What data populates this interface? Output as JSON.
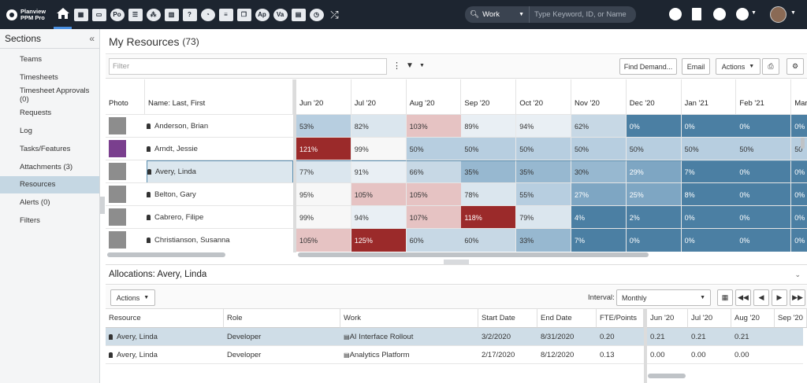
{
  "app": {
    "logo_line1": "Planview",
    "logo_line2": "PPM Pro"
  },
  "topnav": {
    "icons": [
      "home-icon",
      "dashboard-icon",
      "inbox-icon",
      "portfolio-icon",
      "list-icon",
      "groups-icon",
      "map-icon",
      "help-doc-icon",
      "pie-chart-icon",
      "document-icon",
      "copy-icon",
      "ap-icon",
      "va-icon",
      "building-icon",
      "clock-icon",
      "shuffle-icon"
    ],
    "po_label": "Po",
    "ap_label": "Ap",
    "va_label": "Va"
  },
  "search": {
    "scope": "Work",
    "placeholder": "Type Keyword, ID, or Name"
  },
  "sidebar": {
    "title": "Sections",
    "items": [
      {
        "label": "Teams"
      },
      {
        "label": "Timesheets"
      },
      {
        "label": "Timesheet Approvals (0)"
      },
      {
        "label": "Requests"
      },
      {
        "label": "Log"
      },
      {
        "label": "Tasks/Features"
      },
      {
        "label": "Attachments (3)"
      },
      {
        "label": "Resources"
      },
      {
        "label": "Alerts (0)"
      },
      {
        "label": "Filters"
      }
    ]
  },
  "main": {
    "title": "My Resources",
    "count": "(73)"
  },
  "toolbar": {
    "filter_placeholder": "Filter",
    "find_demand": "Find Demand...",
    "email": "Email",
    "actions": "Actions"
  },
  "grid": {
    "photo_header": "Photo",
    "name_header": "Name: Last, First",
    "months": [
      "Jun '20",
      "Jul '20",
      "Aug '20",
      "Sep '20",
      "Oct '20",
      "Nov '20",
      "Dec '20",
      "Jan '21",
      "Feb '21",
      "Mar"
    ],
    "rows": [
      {
        "name": "Anderson, Brian",
        "values": [
          "53%",
          "82%",
          "103%",
          "89%",
          "94%",
          "62%",
          "0%",
          "0%",
          "0%",
          "0%"
        ]
      },
      {
        "name": "Arndt, Jessie",
        "values": [
          "121%",
          "99%",
          "50%",
          "50%",
          "50%",
          "50%",
          "50%",
          "50%",
          "50%",
          "50"
        ]
      },
      {
        "name": "Avery, Linda",
        "values": [
          "77%",
          "91%",
          "66%",
          "35%",
          "35%",
          "30%",
          "29%",
          "7%",
          "0%",
          "0%"
        ]
      },
      {
        "name": "Belton, Gary",
        "values": [
          "95%",
          "105%",
          "105%",
          "78%",
          "55%",
          "27%",
          "25%",
          "8%",
          "0%",
          "0%"
        ]
      },
      {
        "name": "Cabrero, Filipe",
        "values": [
          "99%",
          "94%",
          "107%",
          "118%",
          "79%",
          "4%",
          "2%",
          "0%",
          "0%",
          "0%"
        ]
      },
      {
        "name": "Christianson, Susanna",
        "values": [
          "105%",
          "125%",
          "60%",
          "60%",
          "33%",
          "7%",
          "0%",
          "0%",
          "0%",
          "0%"
        ]
      }
    ]
  },
  "allocations": {
    "title": "Allocations: Avery, Linda",
    "actions": "Actions",
    "interval_label": "Interval:",
    "interval_value": "Monthly",
    "headers": [
      "Resource",
      "Role",
      "Work",
      "Start Date",
      "End Date",
      "FTE/Points",
      "Jun '20",
      "Jul '20",
      "Aug '20",
      "Sep '20"
    ],
    "rows": [
      {
        "resource": "Avery, Linda",
        "role": "Developer",
        "work": "AI Interface Rollout",
        "start": "3/2/2020",
        "end": "8/31/2020",
        "fte": "0.20",
        "m": [
          "0.21",
          "0.21",
          "0.21",
          ""
        ]
      },
      {
        "resource": "Avery, Linda",
        "role": "Developer",
        "work": "Analytics Platform",
        "start": "2/17/2020",
        "end": "8/12/2020",
        "fte": "0.13",
        "m": [
          "0.00",
          "0.00",
          "0.00",
          ""
        ]
      }
    ]
  }
}
